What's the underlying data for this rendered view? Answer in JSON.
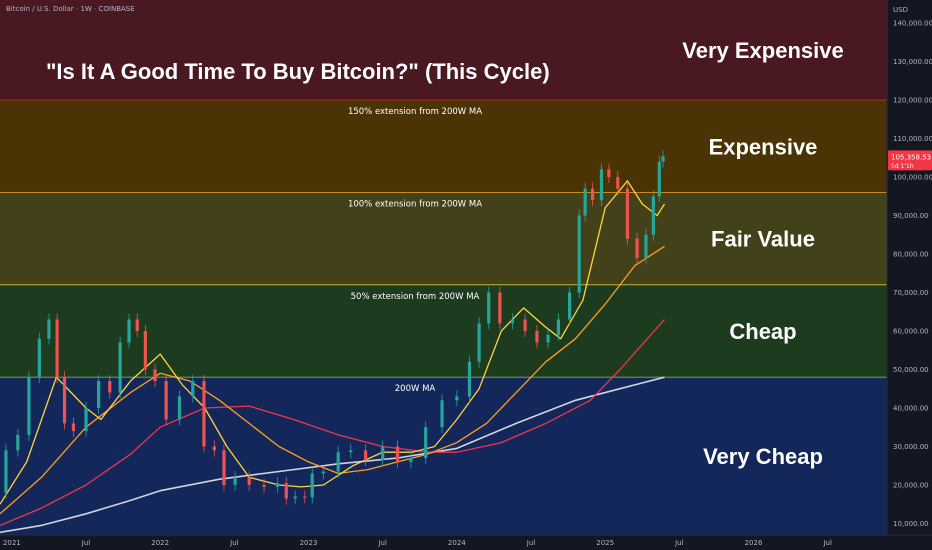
{
  "header": {
    "symbol": "Bitcoin / U.S. Dollar · 1W · COINBASE",
    "currency": "USD"
  },
  "price_tag": {
    "value": "105,358.53",
    "countdown": "5d 1'1h",
    "color": "#f23645"
  },
  "chart_data": {
    "type": "line",
    "title": "\"Is It A Good Time To Buy Bitcoin?\" (This Cycle)",
    "xlabel": "",
    "ylabel": "",
    "ylim": [
      7000,
      146000
    ],
    "grid": false,
    "x_ticks": [
      {
        "label": "2021",
        "t": 2021.0
      },
      {
        "label": "Jul",
        "t": 2021.5
      },
      {
        "label": "2022",
        "t": 2022.0
      },
      {
        "label": "Jul",
        "t": 2022.5
      },
      {
        "label": "2023",
        "t": 2023.0
      },
      {
        "label": "Jul",
        "t": 2023.5
      },
      {
        "label": "2024",
        "t": 2024.0
      },
      {
        "label": "Jul",
        "t": 2024.5
      },
      {
        "label": "2025",
        "t": 2025.0
      },
      {
        "label": "Jul",
        "t": 2025.5
      },
      {
        "label": "2026",
        "t": 2026.0
      },
      {
        "label": "Jul",
        "t": 2026.5
      }
    ],
    "y_ticks": [
      "10,000.00",
      "20,000.00",
      "30,000.00",
      "40,000.00",
      "50,000.00",
      "60,000.00",
      "70,000.00",
      "80,000.00",
      "90,000.00",
      "100,000.00",
      "110,000.00",
      "120,000.00",
      "130,000.00",
      "140,000.00"
    ],
    "zones": [
      {
        "name": "Very Expensive",
        "from": 120000,
        "to": 146000,
        "color": "#4a1820"
      },
      {
        "name": "Expensive",
        "from": 96000,
        "to": 120000,
        "color": "#4a3305"
      },
      {
        "name": "Fair Value",
        "from": 72000,
        "to": 96000,
        "color": "#43411a"
      },
      {
        "name": "Cheap",
        "from": 48000,
        "to": 72000,
        "color": "#1d3b1f"
      },
      {
        "name": "Very Cheap",
        "from": 7000,
        "to": 48000,
        "color": "#13275b"
      }
    ],
    "levels": [
      {
        "label": "150% extension from 200W MA",
        "value": 120000,
        "color": "#c0392b"
      },
      {
        "label": "100% extension from 200W MA",
        "value": 96000,
        "color": "#f0a020"
      },
      {
        "label": "50% extension from 200W MA",
        "value": 72000,
        "color": "#e3d838"
      },
      {
        "label": "200W MA",
        "value": 48000,
        "color": "#8bc34a"
      }
    ],
    "price": {
      "name": "BTC/USD",
      "x": [
        2020.92,
        2021.0,
        2021.08,
        2021.15,
        2021.22,
        2021.28,
        2021.33,
        2021.38,
        2021.45,
        2021.55,
        2021.62,
        2021.7,
        2021.76,
        2021.82,
        2021.87,
        2021.93,
        2022.0,
        2022.08,
        2022.18,
        2022.26,
        2022.33,
        2022.4,
        2022.46,
        2022.55,
        2022.65,
        2022.75,
        2022.83,
        2022.87,
        2022.95,
        2023.0,
        2023.05,
        2023.15,
        2023.25,
        2023.32,
        2023.45,
        2023.55,
        2023.65,
        2023.73,
        2023.85,
        2023.95,
        2024.05,
        2024.12,
        2024.18,
        2024.25,
        2024.33,
        2024.42,
        2024.5,
        2024.58,
        2024.65,
        2024.72,
        2024.8,
        2024.85,
        2024.88,
        2024.95,
        2025.0,
        2025.05,
        2025.12,
        2025.18,
        2025.25,
        2025.3,
        2025.35,
        2025.38,
        2025.4
      ],
      "y": [
        18000,
        29000,
        33000,
        48000,
        58000,
        63000,
        48000,
        36000,
        34000,
        40000,
        47000,
        44000,
        57000,
        63000,
        60000,
        50000,
        47000,
        37000,
        43000,
        47000,
        30000,
        29000,
        20000,
        22000,
        20000,
        19500,
        20500,
        16500,
        17000,
        16800,
        23000,
        23500,
        28500,
        29000,
        26500,
        30000,
        26000,
        27000,
        35000,
        42000,
        43000,
        52000,
        62000,
        70000,
        62000,
        63000,
        60000,
        57000,
        59000,
        63000,
        70000,
        90000,
        97000,
        94000,
        102000,
        100000,
        97000,
        84000,
        79000,
        85000,
        95000,
        104000,
        105358
      ]
    },
    "ma_20w": {
      "color": "#ffd33d",
      "x": [
        2020.92,
        2021.1,
        2021.3,
        2021.5,
        2021.6,
        2021.8,
        2022.0,
        2022.15,
        2022.3,
        2022.45,
        2022.6,
        2022.8,
        2022.95,
        2023.1,
        2023.3,
        2023.5,
        2023.7,
        2023.85,
        2024.0,
        2024.15,
        2024.3,
        2024.45,
        2024.6,
        2024.7,
        2024.85,
        2025.0,
        2025.15,
        2025.25,
        2025.35,
        2025.4
      ],
      "y": [
        15000,
        26000,
        48000,
        40000,
        37000,
        47000,
        54000,
        46000,
        40000,
        30000,
        22000,
        20000,
        19500,
        20000,
        25000,
        28500,
        28500,
        30000,
        37000,
        45000,
        60000,
        66000,
        61000,
        58000,
        68000,
        92000,
        99000,
        93000,
        90000,
        93000
      ]
    },
    "ma_50w": {
      "color": "#ff9e1f",
      "x": [
        2020.92,
        2021.2,
        2021.5,
        2021.8,
        2022.0,
        2022.2,
        2022.4,
        2022.6,
        2022.8,
        2023.0,
        2023.2,
        2023.4,
        2023.6,
        2023.8,
        2024.0,
        2024.2,
        2024.4,
        2024.6,
        2024.8,
        2025.0,
        2025.2,
        2025.4
      ],
      "y": [
        12500,
        22000,
        35000,
        44000,
        49000,
        47000,
        42000,
        36000,
        30000,
        26000,
        23000,
        24000,
        26000,
        28000,
        31000,
        36000,
        44000,
        52000,
        58000,
        67000,
        77000,
        82000
      ]
    },
    "ma_100w": {
      "color": "#f0364a",
      "x": [
        2020.92,
        2021.2,
        2021.5,
        2021.8,
        2022.0,
        2022.3,
        2022.6,
        2022.9,
        2023.2,
        2023.5,
        2023.8,
        2024.0,
        2024.3,
        2024.6,
        2024.9,
        2025.1,
        2025.4
      ],
      "y": [
        9500,
        14000,
        20000,
        28000,
        35000,
        40000,
        40500,
        37000,
        33000,
        30000,
        28500,
        28500,
        31000,
        36000,
        42000,
        50000,
        63000
      ]
    },
    "ma_200w": {
      "color": "#d1d4dc",
      "x": [
        2020.92,
        2021.2,
        2021.5,
        2021.8,
        2022.0,
        2022.4,
        2022.8,
        2023.2,
        2023.6,
        2024.0,
        2024.4,
        2024.8,
        2025.1,
        2025.4
      ],
      "y": [
        7700,
        9500,
        12500,
        16000,
        18500,
        21500,
        23500,
        25500,
        27000,
        29500,
        36000,
        42000,
        45000,
        48000
      ]
    }
  }
}
